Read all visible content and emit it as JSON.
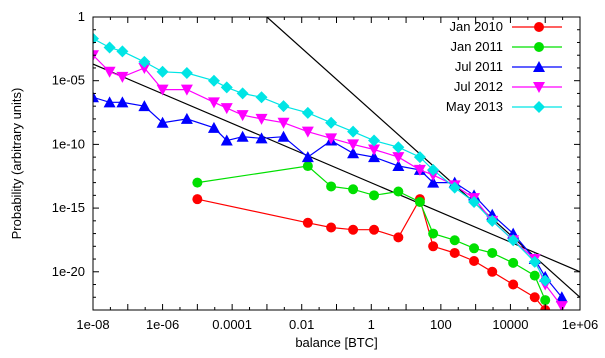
{
  "chart_data": {
    "type": "line",
    "xlabel": "balance [BTC]",
    "ylabel": "Probability (arbitrary units)",
    "x_scale": "log",
    "y_scale": "log",
    "xlim": [
      1e-08,
      1000000.0
    ],
    "ylim": [
      1e-23,
      1
    ],
    "x_ticks": [
      {
        "value": 1e-08,
        "label": "1e-08"
      },
      {
        "value": 1e-06,
        "label": "1e-06"
      },
      {
        "value": 0.0001,
        "label": "0.0001"
      },
      {
        "value": 0.01,
        "label": "0.01"
      },
      {
        "value": 1,
        "label": "1"
      },
      {
        "value": 100,
        "label": "100"
      },
      {
        "value": 10000,
        "label": "10000"
      },
      {
        "value": 1000000.0,
        "label": "1e+06"
      }
    ],
    "y_ticks": [
      {
        "value": 1,
        "label": "1"
      },
      {
        "value": 1e-05,
        "label": "1e-05"
      },
      {
        "value": 1e-10,
        "label": "1e-10"
      },
      {
        "value": 1e-15,
        "label": "1e-15"
      },
      {
        "value": 1e-20,
        "label": "1e-20"
      }
    ],
    "legend_position": "top-right",
    "grid": false,
    "series": [
      {
        "name": "Jan 2010",
        "color": "#ff0000",
        "marker": "circle",
        "points": [
          [
            1e-05,
            5e-15
          ],
          [
            0.015,
            7e-17
          ],
          [
            0.07,
            3e-17
          ],
          [
            0.3,
            2e-17
          ],
          [
            1.2,
            2e-17
          ],
          [
            6,
            5e-18
          ],
          [
            25,
            5e-15
          ],
          [
            60,
            1e-18
          ],
          [
            250,
            3e-19
          ],
          [
            900,
            7e-20
          ],
          [
            3000,
            1e-20
          ],
          [
            12000,
            1e-21
          ],
          [
            50000,
            1e-22
          ],
          [
            100000,
            1e-23
          ]
        ]
      },
      {
        "name": "Jan 2011",
        "color": "#00e000",
        "marker": "circle",
        "points": [
          [
            1e-05,
            1e-13
          ],
          [
            0.015,
            2e-12
          ],
          [
            0.07,
            5e-14
          ],
          [
            0.3,
            3e-14
          ],
          [
            1.2,
            1e-14
          ],
          [
            6,
            2e-14
          ],
          [
            25,
            3e-15
          ],
          [
            60,
            1e-17
          ],
          [
            250,
            3e-18
          ],
          [
            900,
            7e-19
          ],
          [
            3000,
            3e-19
          ],
          [
            12000,
            5e-20
          ],
          [
            50000,
            5e-21
          ],
          [
            100000,
            6e-23
          ]
        ]
      },
      {
        "name": "Jul 2011",
        "color": "#0000ff",
        "marker": "triangle-up",
        "points": [
          [
            1e-08,
            5e-07
          ],
          [
            3e-08,
            2e-07
          ],
          [
            7e-08,
            2e-07
          ],
          [
            3e-07,
            1e-07
          ],
          [
            1e-06,
            5e-09
          ],
          [
            5e-06,
            1e-08
          ],
          [
            3e-05,
            2e-09
          ],
          [
            7e-05,
            2e-10
          ],
          [
            0.0002,
            4e-10
          ],
          [
            0.0007,
            3e-10
          ],
          [
            0.003,
            4e-10
          ],
          [
            0.015,
            1e-11
          ],
          [
            0.07,
            2e-10
          ],
          [
            0.3,
            2e-11
          ],
          [
            1.2,
            1e-11
          ],
          [
            6,
            2e-12
          ],
          [
            25,
            1e-12
          ],
          [
            60,
            1e-13
          ],
          [
            250,
            1e-13
          ],
          [
            900,
            1e-14
          ],
          [
            3000,
            3e-16
          ],
          [
            12000,
            1e-17
          ],
          [
            50000,
            1e-19
          ],
          [
            100000,
            4e-21
          ],
          [
            300000,
            1e-22
          ]
        ]
      },
      {
        "name": "Jul 2012",
        "color": "#ff00ff",
        "marker": "triangle-down",
        "points": [
          [
            1e-08,
            0.001
          ],
          [
            3e-08,
            5e-05
          ],
          [
            7e-08,
            2e-05
          ],
          [
            3e-07,
            0.0001
          ],
          [
            1e-06,
            2e-06
          ],
          [
            5e-06,
            2e-06
          ],
          [
            3e-05,
            2e-07
          ],
          [
            7e-05,
            7e-08
          ],
          [
            0.0002,
            2e-08
          ],
          [
            0.0007,
            1e-08
          ],
          [
            0.003,
            5e-09
          ],
          [
            0.015,
            1e-09
          ],
          [
            0.07,
            3e-10
          ],
          [
            0.3,
            1e-10
          ],
          [
            1.2,
            4e-11
          ],
          [
            6,
            1e-11
          ],
          [
            25,
            1e-12
          ],
          [
            60,
            4e-13
          ],
          [
            250,
            6e-14
          ],
          [
            900,
            6e-15
          ],
          [
            3000,
            1e-16
          ],
          [
            12000,
            3e-18
          ],
          [
            50000,
            1e-19
          ],
          [
            100000,
            1e-21
          ],
          [
            300000,
            2e-23
          ]
        ]
      },
      {
        "name": "May 2013",
        "color": "#00e5e5",
        "marker": "diamond",
        "points": [
          [
            1e-08,
            0.02
          ],
          [
            3e-08,
            0.004
          ],
          [
            7e-08,
            0.002
          ],
          [
            3e-07,
            0.0003
          ],
          [
            1e-06,
            5e-05
          ],
          [
            5e-06,
            4e-05
          ],
          [
            3e-05,
            1e-05
          ],
          [
            7e-05,
            3e-06
          ],
          [
            0.0002,
            1e-06
          ],
          [
            0.0007,
            5e-07
          ],
          [
            0.003,
            1e-07
          ],
          [
            0.015,
            3e-08
          ],
          [
            0.07,
            5e-09
          ],
          [
            0.3,
            1e-09
          ],
          [
            1.2,
            2e-10
          ],
          [
            6,
            6e-11
          ],
          [
            25,
            1e-11
          ],
          [
            60,
            1e-12
          ],
          [
            250,
            4e-14
          ],
          [
            900,
            3e-15
          ],
          [
            3000,
            1e-16
          ],
          [
            12000,
            3e-18
          ],
          [
            50000,
            6e-20
          ],
          [
            100000,
            2e-21
          ]
        ]
      }
    ],
    "reference_lines": [
      {
        "name": "reference-line-1",
        "color": "#000000",
        "points": [
          [
            1e-08,
            0.0002
          ],
          [
            1000000.0,
            1e-20
          ]
        ]
      },
      {
        "name": "reference-line-2",
        "color": "#000000",
        "points": [
          [
            0.001,
            1
          ],
          [
            1000000.0,
            1e-22
          ]
        ]
      }
    ]
  }
}
